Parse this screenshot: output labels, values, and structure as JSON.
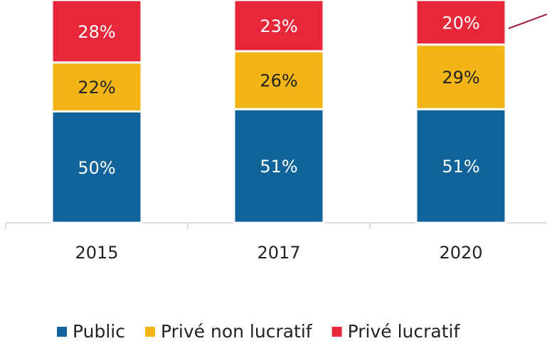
{
  "chart_data": {
    "type": "stacked_bar",
    "categories": [
      "2015",
      "2017",
      "2020"
    ],
    "series": [
      {
        "name": "Public",
        "color": "#11649a",
        "values": [
          50,
          51,
          51
        ],
        "value_labels": [
          "50%",
          "51%",
          "51%"
        ]
      },
      {
        "name": "Privé non lucratif",
        "color": "#f2b515",
        "values": [
          22,
          26,
          29
        ],
        "value_labels": [
          "22%",
          "26%",
          "29%"
        ]
      },
      {
        "name": "Privé lucratif",
        "color": "#e8283a",
        "values": [
          28,
          23,
          20
        ],
        "value_labels": [
          "28%",
          "23%",
          "20%"
        ]
      }
    ],
    "legend": "bottom"
  }
}
